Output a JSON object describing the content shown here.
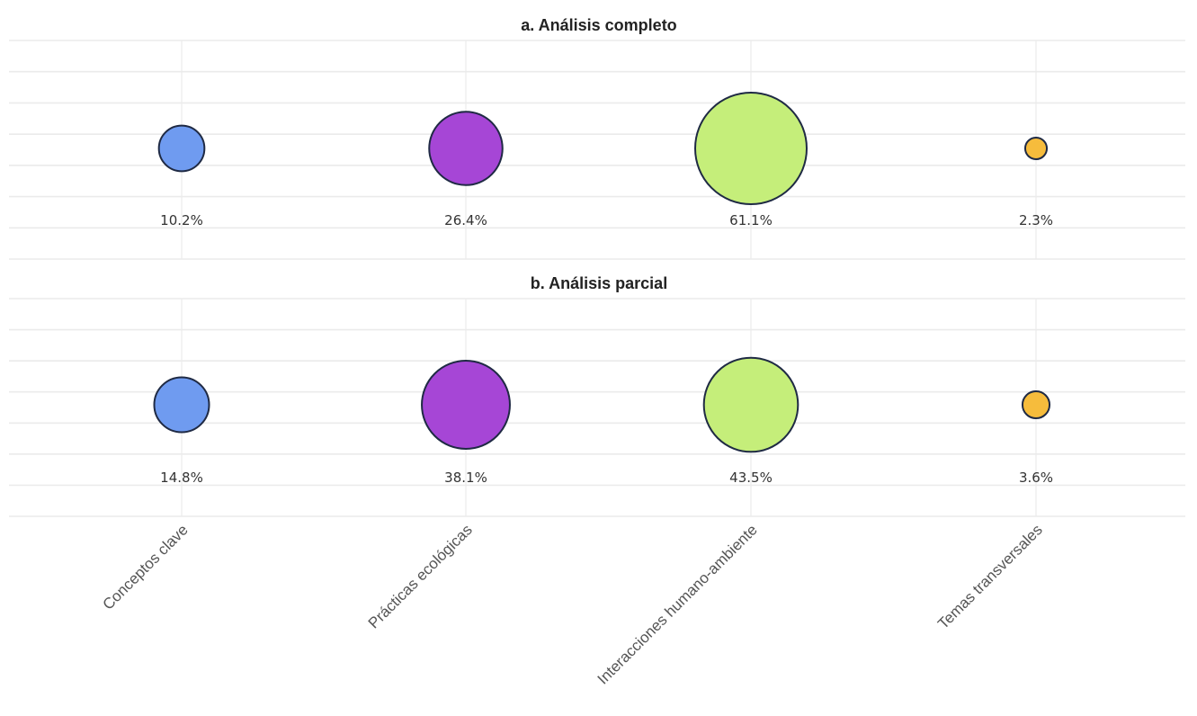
{
  "chart_data": {
    "type": "bubble",
    "categories": [
      "Conceptos clave",
      "Prácticas ecológicas",
      "Interacciones humano-ambiente",
      "Temas transversales"
    ],
    "colors": [
      "#6f9bf0",
      "#a646d6",
      "#c5ee7a",
      "#f6bc3c"
    ],
    "value_format": "percent",
    "panels": [
      {
        "title": "a. Análisis completo",
        "values": [
          10.2,
          26.4,
          61.1,
          2.3
        ],
        "labels": [
          "10.2%",
          "26.4%",
          "61.1%",
          "2.3%"
        ]
      },
      {
        "title": "b. Análisis parcial",
        "values": [
          14.8,
          38.1,
          43.5,
          3.6
        ],
        "labels": [
          "14.8%",
          "38.1%",
          "43.5%",
          "3.6%"
        ]
      }
    ],
    "legend": "none",
    "grid": true
  }
}
